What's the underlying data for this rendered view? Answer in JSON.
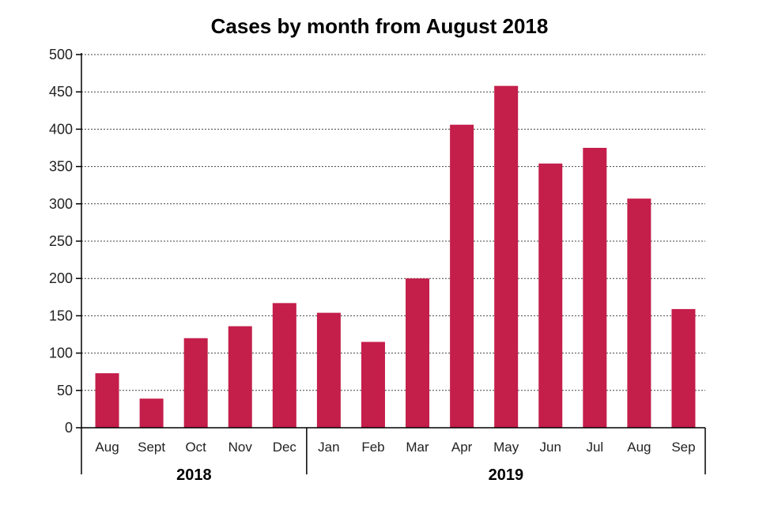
{
  "chart_data": {
    "type": "bar",
    "title": "Cases by month from August 2018",
    "categories": [
      "Aug",
      "Sept",
      "Oct",
      "Nov",
      "Dec",
      "Jan",
      "Feb",
      "Mar",
      "Apr",
      "May",
      "Jun",
      "Jul",
      "Aug",
      "Sep"
    ],
    "values": [
      73,
      39,
      120,
      136,
      167,
      154,
      115,
      200,
      406,
      458,
      354,
      375,
      307,
      159
    ],
    "groups": [
      {
        "label": "2018",
        "start": 0,
        "end": 4
      },
      {
        "label": "2019",
        "start": 5,
        "end": 13
      }
    ],
    "xlabel": "",
    "ylabel": "",
    "ylim": [
      0,
      500
    ],
    "yticks": [
      0,
      50,
      100,
      150,
      200,
      250,
      300,
      350,
      400,
      450,
      500
    ],
    "grid": true,
    "bar_color": "#c41e4a"
  }
}
